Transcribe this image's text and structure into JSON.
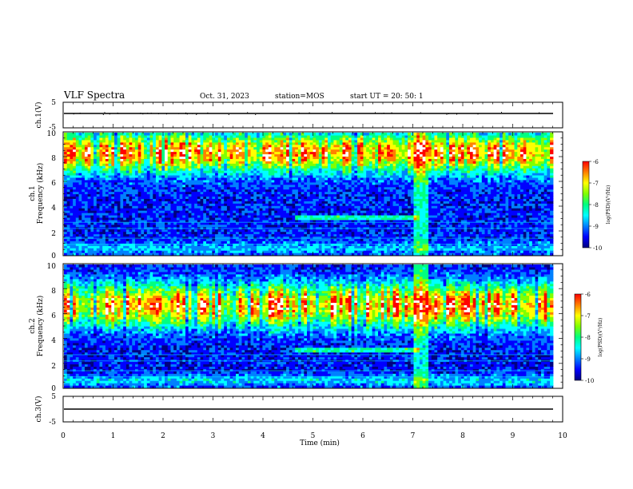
{
  "header": {
    "title": "VLF Spectra",
    "date": "Oct. 31, 2023",
    "station": "station=MOS",
    "start": "start  UT  =   20: 50: 1"
  },
  "colors": {
    "scale": [
      "#00007f",
      "#0000ff",
      "#0080ff",
      "#00ffff",
      "#00ff80",
      "#80ff00",
      "#ffff00",
      "#ff8000",
      "#ff0000",
      "#ffffff"
    ],
    "background": "#ffffff",
    "axis": "#000000"
  },
  "chart_data": [
    {
      "type": "line",
      "name": "ch1-voltage",
      "ylabel": "ch.1(V)",
      "ylim": [
        -5,
        5
      ],
      "yticks": [
        "5",
        "-5"
      ],
      "xlim": [
        0,
        10
      ],
      "trace_level": 0
    },
    {
      "type": "heatmap",
      "name": "ch1-spectrogram",
      "ylabel": "ch.1\nFrequency (kHz)",
      "xlim": [
        0,
        10
      ],
      "ylim": [
        0,
        10
      ],
      "yticks": [
        "0",
        "2",
        "4",
        "6",
        "8",
        "10"
      ],
      "data_end_min": 9.82,
      "colorbar": {
        "label": "log(PSD)(V²/Hz)",
        "range": [
          -10,
          -6
        ],
        "ticks": [
          "-6",
          "-7",
          "-8",
          "-9",
          "-10"
        ]
      }
    },
    {
      "type": "heatmap",
      "name": "ch2-spectrogram",
      "ylabel": "ch.2\nFrequency (kHz)",
      "xlim": [
        0,
        10
      ],
      "ylim": [
        0,
        10
      ],
      "yticks": [
        "0",
        "2",
        "4",
        "6",
        "8",
        "10"
      ],
      "data_end_min": 9.82,
      "colorbar": {
        "label": "log(PSD)(V²/Hz)",
        "range": [
          -10,
          -6
        ],
        "ticks": [
          "-6",
          "-7",
          "-8",
          "-9",
          "-10"
        ]
      }
    },
    {
      "type": "line",
      "name": "ch3-voltage",
      "ylabel": "ch.3(V)",
      "ylim": [
        -5,
        5
      ],
      "yticks": [
        "5",
        "-5"
      ],
      "xlim": [
        0,
        10
      ],
      "trace_level": 0
    },
    {
      "type": "axis",
      "xlabel": "Time  (min)",
      "xticks": [
        "0",
        "1",
        "2",
        "3",
        "4",
        "5",
        "6",
        "7",
        "8",
        "9",
        "10"
      ],
      "xlim": [
        0,
        10
      ]
    }
  ]
}
